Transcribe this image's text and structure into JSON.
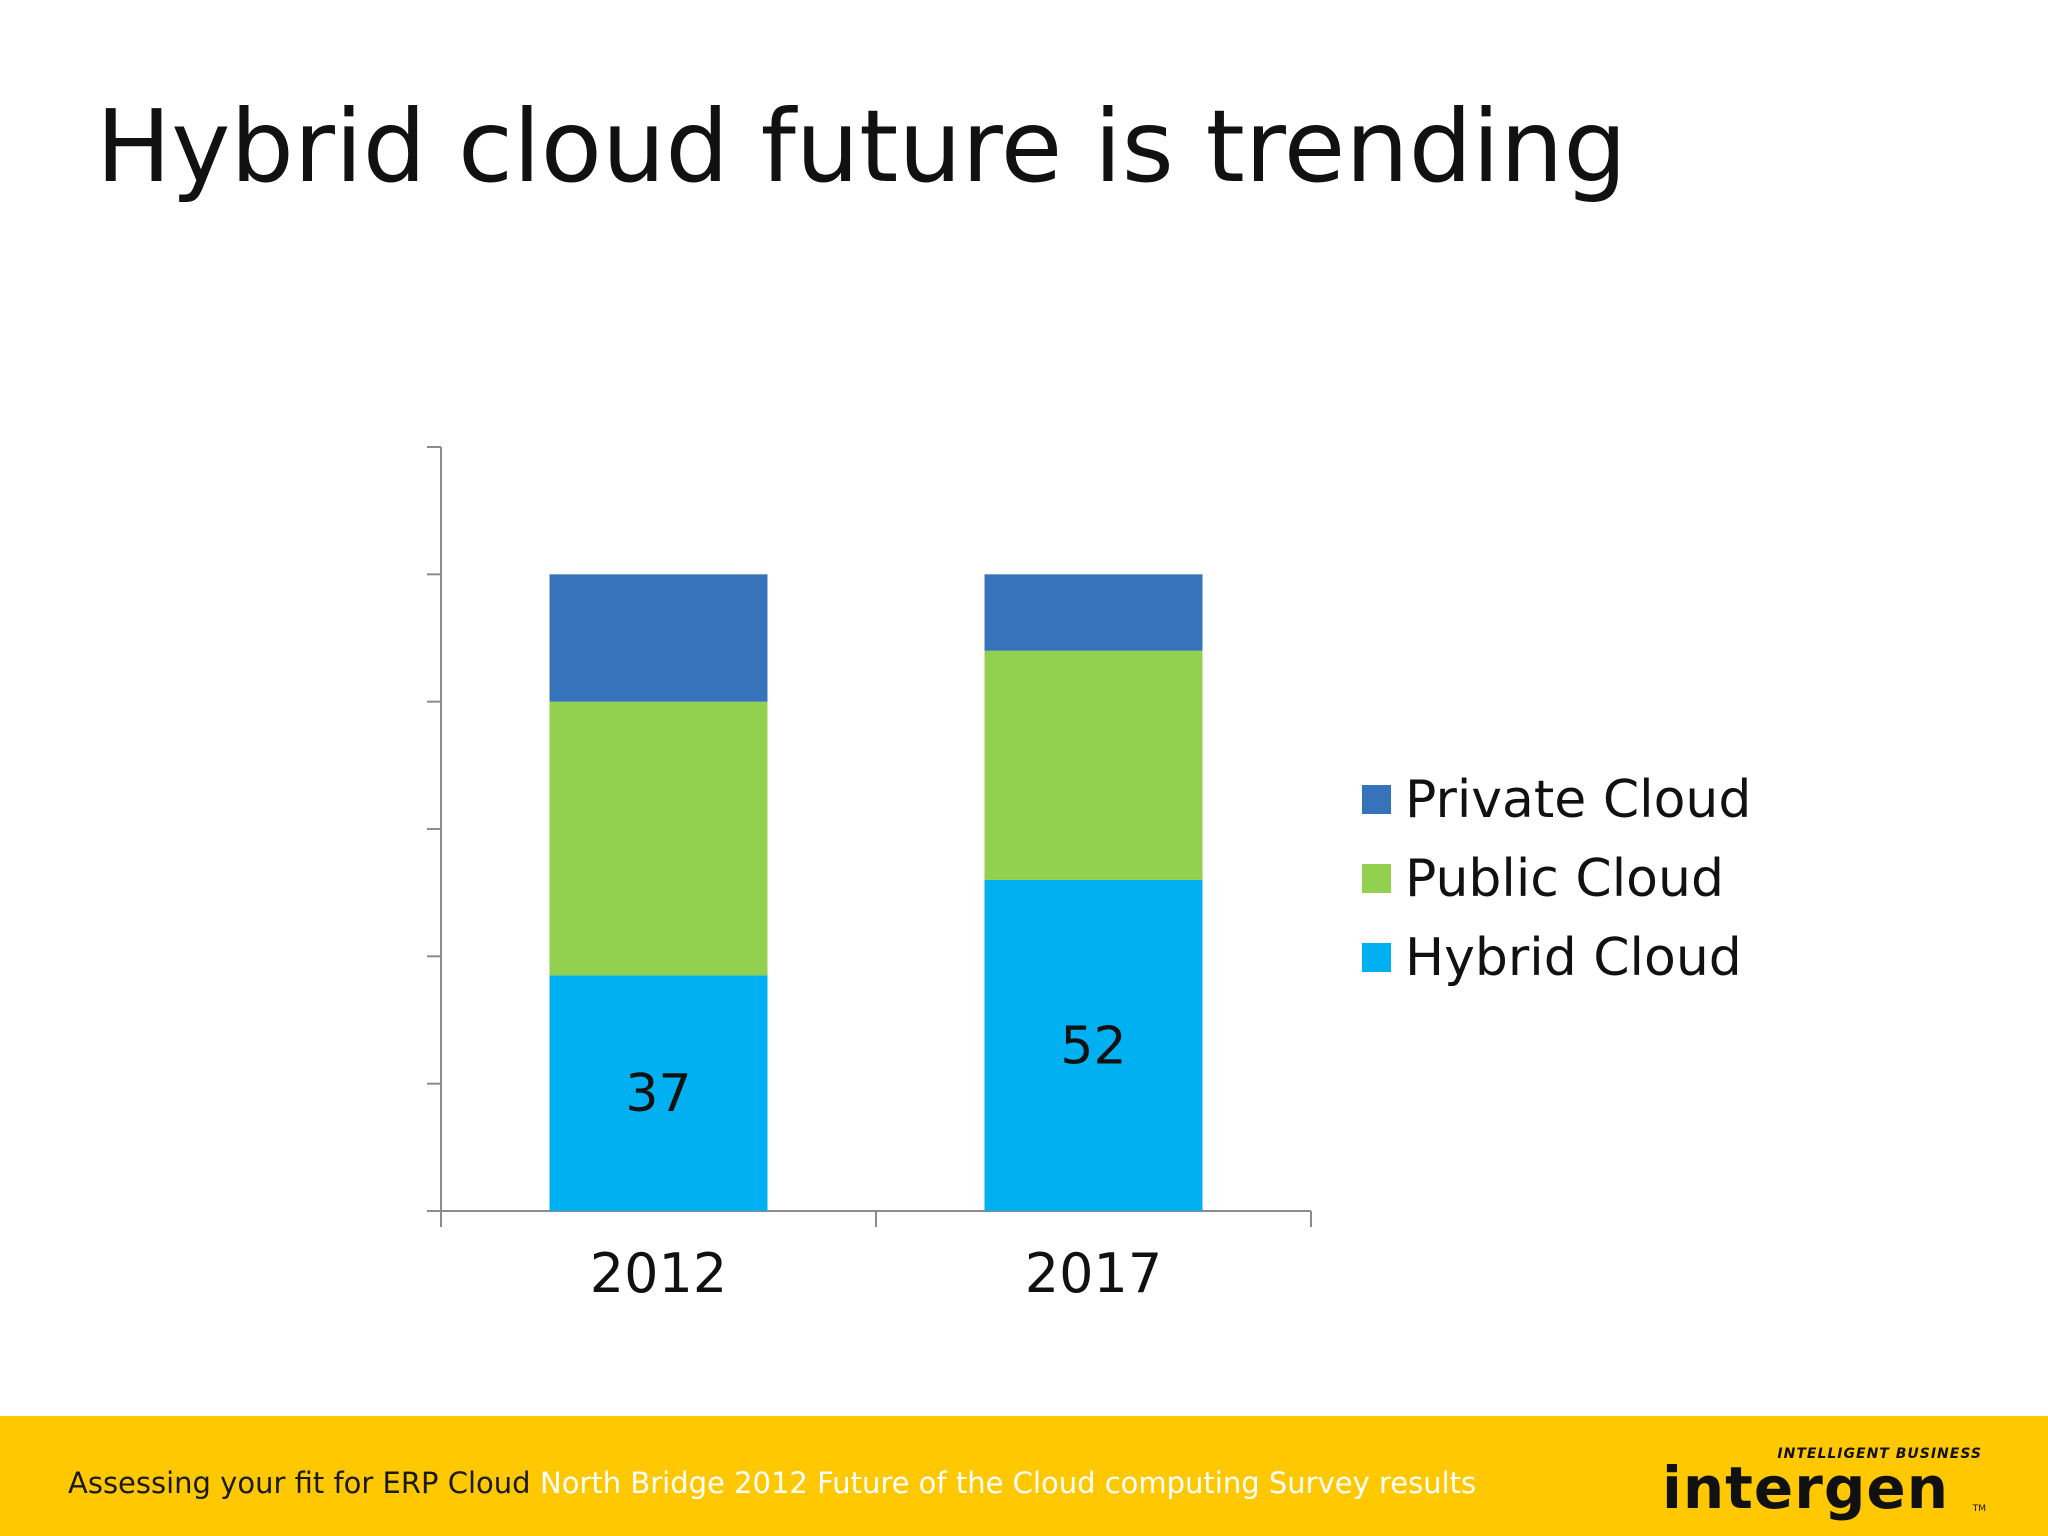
{
  "slide": {
    "title": "Hybrid cloud future is trending"
  },
  "chart_data": {
    "type": "bar",
    "stacked": true,
    "categories": [
      "2012",
      "2017"
    ],
    "series": [
      {
        "name": "Hybrid Cloud",
        "values": [
          37,
          52
        ],
        "color": "#00b0f0",
        "data_labels": [
          "37",
          "52"
        ]
      },
      {
        "name": "Public Cloud",
        "values": [
          43,
          36
        ],
        "color": "#92d050"
      },
      {
        "name": "Private Cloud",
        "values": [
          20,
          12
        ],
        "color": "#3673bb"
      }
    ],
    "legend_order": [
      "Private Cloud",
      "Public Cloud",
      "Hybrid Cloud"
    ],
    "legend_position": "right",
    "ylim": [
      0,
      120
    ],
    "y_tick_count": 6,
    "y_tick_labels_visible": false,
    "grid": false
  },
  "footer": {
    "title": "Assessing your fit for ERP Cloud",
    "source": "North Bridge 2012 Future of the Cloud computing Survey results",
    "background_color": "#ffc800"
  },
  "logo": {
    "tagline": "INTELLIGENT BUSINESS",
    "wordmark": "intergen",
    "trademark": "TM"
  }
}
